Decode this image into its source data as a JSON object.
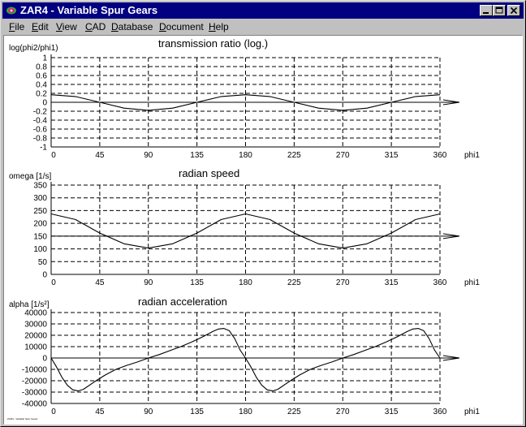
{
  "window": {
    "title": "ZAR4 - Variable Spur Gears"
  },
  "menu": {
    "file": "File",
    "edit": "Edit",
    "view": "View",
    "cad": "CAD",
    "database": "Database",
    "document": "Document",
    "help": "Help"
  },
  "footer": {
    "text": "ZAR4 - Variable Spur Gears"
  },
  "chart_data": [
    {
      "type": "line",
      "title": "transmission ratio (log.)",
      "ylabel": "log(phi2/phi1)",
      "xlabel": "phi1",
      "xlim": [
        0,
        360
      ],
      "ylim": [
        -1,
        1
      ],
      "x_ticks": [
        0,
        45,
        90,
        135,
        180,
        225,
        270,
        315,
        360
      ],
      "y_ticks": [
        1,
        0.8,
        0.6,
        0.4,
        0.2,
        0,
        -0.2,
        -0.4,
        -0.6,
        -0.8,
        -1
      ],
      "grid": true,
      "baseline": 0,
      "x": [
        0,
        22.5,
        45,
        67.5,
        90,
        112.5,
        135,
        157.5,
        180,
        202.5,
        225,
        247.5,
        270,
        292.5,
        315,
        337.5,
        360
      ],
      "values": [
        0.17,
        0.13,
        0.0,
        -0.13,
        -0.18,
        -0.13,
        0.0,
        0.13,
        0.17,
        0.13,
        0.0,
        -0.13,
        -0.18,
        -0.13,
        0.0,
        0.13,
        0.17
      ]
    },
    {
      "type": "line",
      "title": "radian speed",
      "ylabel": "omega [1/s]",
      "xlabel": "phi1",
      "xlim": [
        0,
        360
      ],
      "ylim": [
        0,
        350
      ],
      "x_ticks": [
        0,
        45,
        90,
        135,
        180,
        225,
        270,
        315,
        360
      ],
      "y_ticks": [
        350,
        300,
        250,
        200,
        150,
        100,
        50,
        0
      ],
      "grid": true,
      "baseline": 150,
      "x": [
        0,
        22.5,
        45,
        67.5,
        90,
        112.5,
        135,
        157.5,
        180,
        202.5,
        225,
        247.5,
        270,
        292.5,
        315,
        337.5,
        360
      ],
      "values": [
        237,
        215,
        162,
        120,
        103,
        120,
        162,
        215,
        237,
        215,
        162,
        120,
        103,
        120,
        162,
        215,
        237
      ]
    },
    {
      "type": "line",
      "title": "radian acceleration",
      "ylabel": "alpha [1/s²]",
      "xlabel": "phi1",
      "xlim": [
        0,
        360
      ],
      "ylim": [
        -40000,
        40000
      ],
      "x_ticks": [
        0,
        45,
        90,
        135,
        180,
        225,
        270,
        315,
        360
      ],
      "y_ticks": [
        40000,
        30000,
        20000,
        10000,
        0,
        -10000,
        -20000,
        -30000,
        -40000
      ],
      "grid": true,
      "baseline": 0,
      "x": [
        0,
        5,
        10,
        15,
        20,
        25,
        30,
        40,
        50,
        60,
        70,
        80,
        90,
        100,
        110,
        120,
        130,
        140,
        150,
        155,
        160,
        165,
        170,
        175,
        180,
        185,
        190,
        195,
        200,
        205,
        210,
        220,
        230,
        240,
        250,
        260,
        270,
        280,
        290,
        300,
        310,
        320,
        330,
        335,
        340,
        345,
        350,
        355,
        360
      ],
      "values": [
        0,
        -8000,
        -17000,
        -24000,
        -28000,
        -29000,
        -27500,
        -21000,
        -15000,
        -10000,
        -6500,
        -3500,
        0,
        3000,
        6500,
        10000,
        14000,
        18500,
        23500,
        25500,
        26000,
        24000,
        17000,
        7000,
        0,
        -8000,
        -17000,
        -24000,
        -28000,
        -29000,
        -27500,
        -21000,
        -15000,
        -10000,
        -6500,
        -3500,
        0,
        3000,
        6500,
        10000,
        14000,
        18500,
        23500,
        25500,
        26000,
        24000,
        17000,
        7000,
        0
      ]
    }
  ]
}
